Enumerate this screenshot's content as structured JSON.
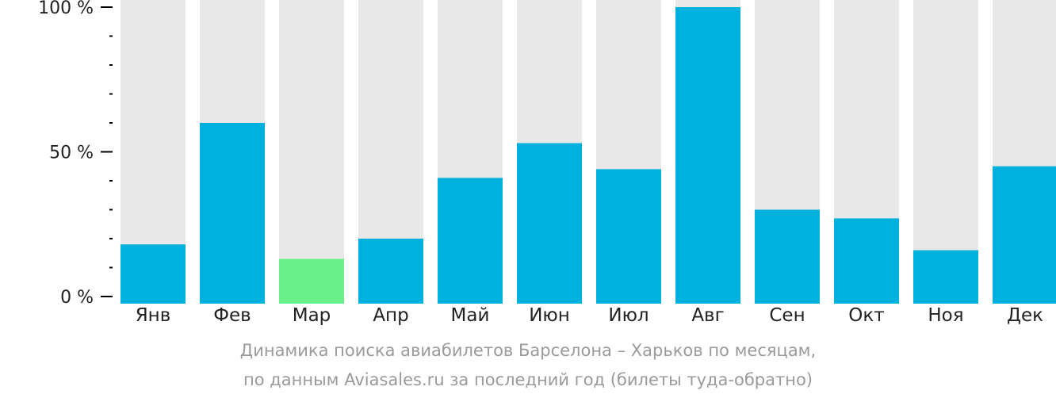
{
  "chart_data": {
    "type": "bar",
    "categories": [
      "Янв",
      "Фев",
      "Мар",
      "Апр",
      "Май",
      "Июн",
      "Июл",
      "Авг",
      "Сен",
      "Окт",
      "Ноя",
      "Дек"
    ],
    "values": [
      18,
      60,
      13,
      20,
      41,
      53,
      44,
      100,
      30,
      27,
      16,
      45
    ],
    "ylim": [
      0,
      100
    ],
    "y_ticks": [
      {
        "value": 100,
        "label": "100 %"
      },
      {
        "value": 50,
        "label": "50 %"
      },
      {
        "value": 0,
        "label": "0 %"
      }
    ],
    "y_minor_step": 10,
    "grid": false,
    "highlight_index": 2,
    "colors": {
      "bar": "#00b0dd",
      "highlight": "#6af08a",
      "background_bar": "#e8e8e8",
      "axis": "#000000",
      "tick_label": "#222222"
    }
  },
  "caption": {
    "line1": "Динамика поиска авиабилетов Барселона – Харьков по месяцам,",
    "line2": "по данным Aviasales.ru за последний год (билеты туда-обратно)"
  }
}
